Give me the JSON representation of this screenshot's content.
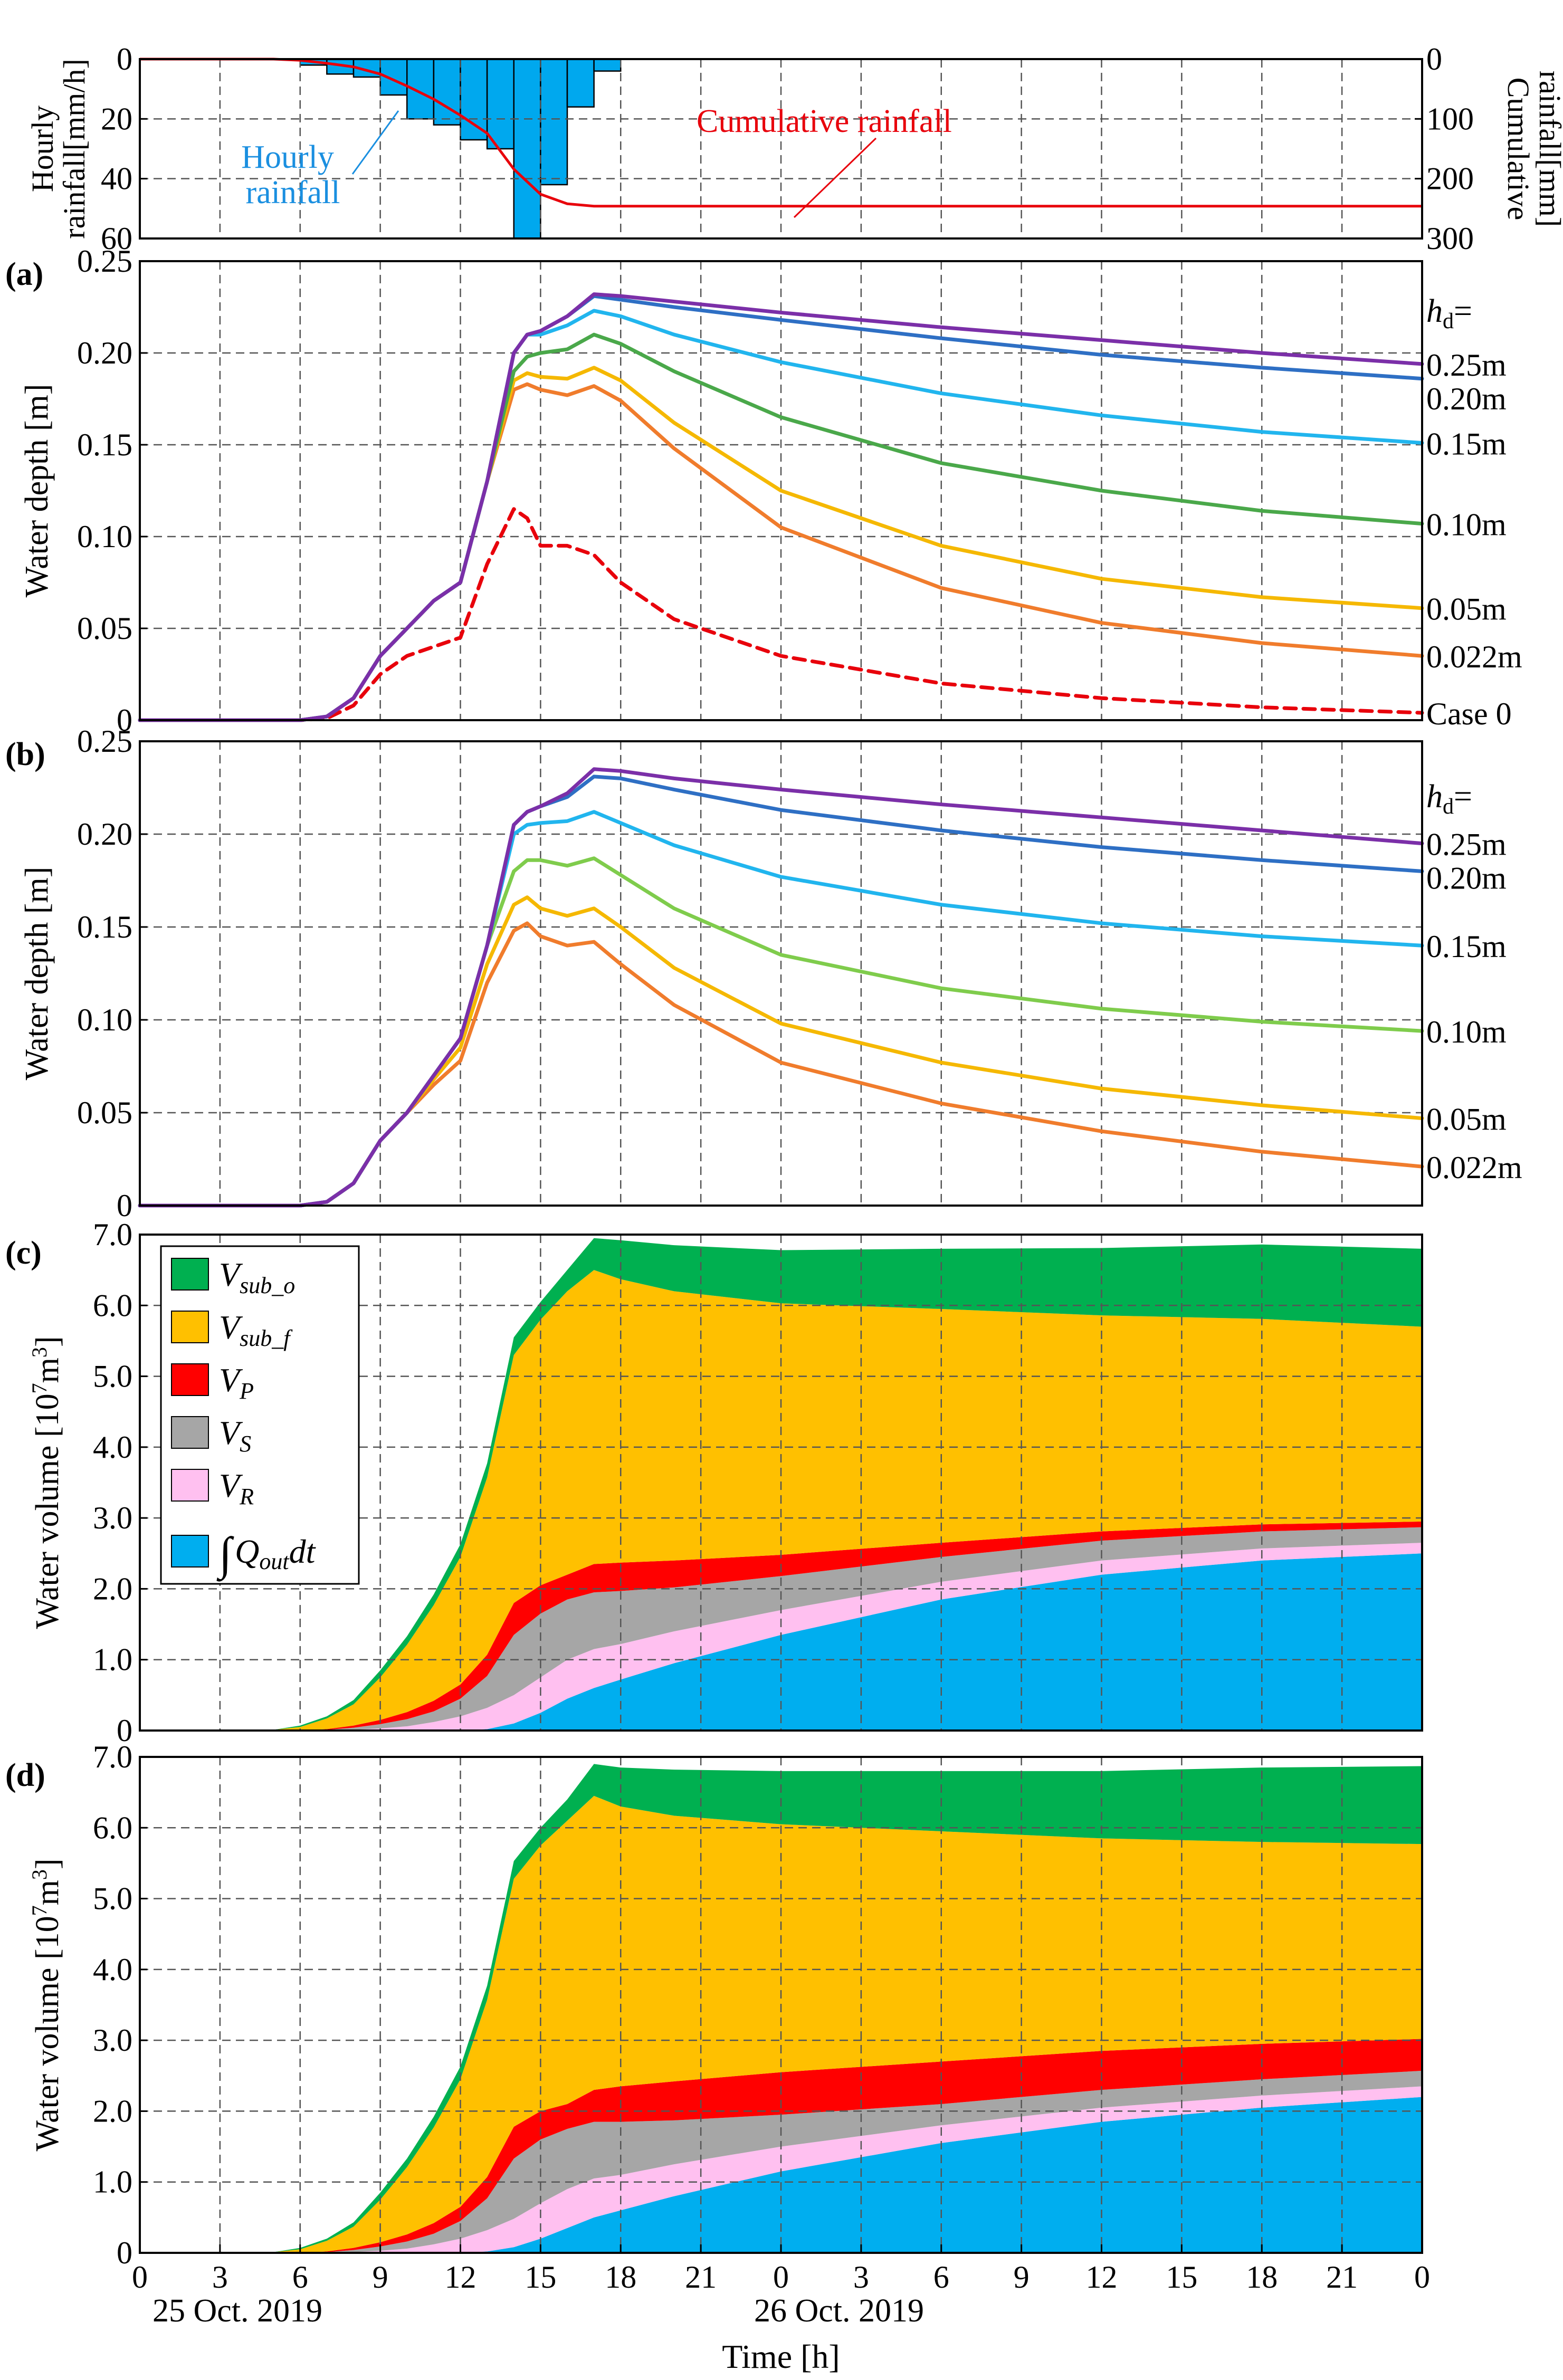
{
  "chart_data": [
    {
      "type": "bar",
      "panel": "rainfall",
      "ylabel": "Hourly rainfall[mm/h]",
      "ylabel_lines": [
        "Hourly",
        "rainfall[mm/h]"
      ],
      "y2label": "Cumulative rainfall[mm]",
      "y2label_lines": [
        "Cumulative",
        "rainfall[mm]"
      ],
      "ylim": [
        0,
        60
      ],
      "ylim_inverted": true,
      "yticks": [
        0,
        20,
        40,
        60
      ],
      "y2lim": [
        0,
        300
      ],
      "y2ticks": [
        0,
        100,
        200,
        300
      ],
      "y2ticklabels": [
        "0",
        "100",
        "200",
        "300"
      ],
      "xlim": [
        0,
        48
      ],
      "grid": true,
      "annotations": [
        {
          "label": "hourly",
          "lines": [
            "Hourly",
            "rainfall"
          ],
          "color": "#1a8fe0"
        },
        {
          "label": "cumulative",
          "lines": [
            "Cumulative rainfall"
          ],
          "color": "#e8000b"
        }
      ],
      "series": [
        {
          "name": "Hourly rainfall",
          "color": "#00a8ee",
          "bar_x": [
            6,
            7,
            8,
            9,
            10,
            11,
            12,
            13,
            14,
            15,
            16,
            17
          ],
          "values": [
            2,
            5,
            6,
            12,
            20,
            22,
            27,
            30,
            60,
            42,
            16,
            4
          ]
        },
        {
          "name": "Cumulative rainfall",
          "color": "#e8000b",
          "x": [
            0,
            5,
            6,
            7,
            8,
            9,
            10,
            11,
            12,
            13,
            14,
            15,
            16,
            17,
            18,
            48
          ],
          "values": [
            0,
            0,
            2,
            7,
            13,
            25,
            45,
            67,
            94,
            124,
            184,
            226,
            242,
            246,
            246,
            246
          ]
        }
      ]
    },
    {
      "type": "line",
      "panel": "(a)",
      "ylabel": "Water depth [m]",
      "ylim": [
        0,
        0.25
      ],
      "yticks": [
        0,
        0.05,
        0.1,
        0.15,
        0.2,
        0.25
      ],
      "yticklabels": [
        "0",
        "0.05",
        "0.10",
        "0.15",
        "0.20",
        "0.25"
      ],
      "xlim": [
        0,
        48
      ],
      "grid": true,
      "legend_title_main": "h",
      "legend_title_sub": "d",
      "legend_title_tail": "=",
      "x": [
        0,
        6,
        7,
        8,
        9,
        10,
        11,
        12,
        13,
        14,
        14.5,
        15,
        16,
        17,
        18,
        20,
        24,
        30,
        36,
        42,
        48
      ],
      "series": [
        {
          "name": "0.25m",
          "color": "#7b2fa8",
          "dashed": false,
          "values": [
            0,
            0,
            0.002,
            0.012,
            0.035,
            0.05,
            0.065,
            0.075,
            0.13,
            0.2,
            0.21,
            0.212,
            0.22,
            0.232,
            0.231,
            0.228,
            0.222,
            0.214,
            0.207,
            0.2,
            0.194
          ]
        },
        {
          "name": "0.20m",
          "color": "#2e6fc4",
          "dashed": false,
          "values": [
            0,
            0,
            0.002,
            0.012,
            0.035,
            0.05,
            0.065,
            0.075,
            0.13,
            0.2,
            0.21,
            0.212,
            0.22,
            0.231,
            0.229,
            0.225,
            0.218,
            0.208,
            0.199,
            0.192,
            0.186
          ]
        },
        {
          "name": "0.15m",
          "color": "#21b5ee",
          "dashed": false,
          "values": [
            0,
            0,
            0.002,
            0.012,
            0.035,
            0.05,
            0.065,
            0.075,
            0.13,
            0.2,
            0.21,
            0.21,
            0.215,
            0.223,
            0.22,
            0.21,
            0.195,
            0.178,
            0.166,
            0.157,
            0.151
          ]
        },
        {
          "name": "0.10m",
          "color": "#4aa84a",
          "dashed": false,
          "values": [
            0,
            0,
            0.002,
            0.012,
            0.035,
            0.05,
            0.065,
            0.075,
            0.13,
            0.19,
            0.198,
            0.2,
            0.202,
            0.21,
            0.205,
            0.19,
            0.165,
            0.14,
            0.125,
            0.114,
            0.107
          ]
        },
        {
          "name": "0.05m",
          "color": "#f5b800",
          "dashed": false,
          "values": [
            0,
            0,
            0.002,
            0.012,
            0.035,
            0.05,
            0.065,
            0.075,
            0.13,
            0.185,
            0.189,
            0.187,
            0.186,
            0.192,
            0.185,
            0.162,
            0.125,
            0.095,
            0.077,
            0.067,
            0.061
          ]
        },
        {
          "name": "0.022m",
          "color": "#f07c2c",
          "dashed": false,
          "values": [
            0,
            0,
            0.002,
            0.012,
            0.035,
            0.05,
            0.065,
            0.075,
            0.13,
            0.18,
            0.183,
            0.18,
            0.177,
            0.182,
            0.174,
            0.148,
            0.105,
            0.072,
            0.053,
            0.042,
            0.035
          ]
        },
        {
          "name": "Case 0",
          "color": "#e8000b",
          "dashed": true,
          "values": [
            0,
            0,
            0.001,
            0.008,
            0.025,
            0.035,
            0.04,
            0.045,
            0.085,
            0.115,
            0.11,
            0.095,
            0.095,
            0.09,
            0.075,
            0.055,
            0.035,
            0.02,
            0.012,
            0.007,
            0.004
          ]
        }
      ]
    },
    {
      "type": "line",
      "panel": "(b)",
      "ylabel": "Water depth [m]",
      "ylim": [
        0,
        0.25
      ],
      "yticks": [
        0,
        0.05,
        0.1,
        0.15,
        0.2,
        0.25
      ],
      "yticklabels": [
        "0",
        "0.05",
        "0.10",
        "0.15",
        "0.20",
        "0.25"
      ],
      "xlim": [
        0,
        48
      ],
      "grid": true,
      "legend_title_main": "h",
      "legend_title_sub": "d",
      "legend_title_tail": "=",
      "x": [
        0,
        6,
        7,
        8,
        9,
        10,
        11,
        12,
        13,
        14,
        14.5,
        15,
        16,
        17,
        18,
        20,
        24,
        30,
        36,
        42,
        48
      ],
      "series": [
        {
          "name": "0.25m",
          "color": "#7b2fa8",
          "dashed": false,
          "values": [
            0,
            0,
            0.002,
            0.012,
            0.035,
            0.05,
            0.07,
            0.09,
            0.14,
            0.205,
            0.212,
            0.215,
            0.222,
            0.235,
            0.234,
            0.23,
            0.224,
            0.216,
            0.209,
            0.202,
            0.195
          ]
        },
        {
          "name": "0.20m",
          "color": "#2e6fc4",
          "dashed": false,
          "values": [
            0,
            0,
            0.002,
            0.012,
            0.035,
            0.05,
            0.07,
            0.09,
            0.14,
            0.205,
            0.212,
            0.215,
            0.22,
            0.231,
            0.23,
            0.224,
            0.213,
            0.202,
            0.193,
            0.186,
            0.18
          ]
        },
        {
          "name": "0.15m",
          "color": "#21b5ee",
          "dashed": false,
          "values": [
            0,
            0,
            0.002,
            0.012,
            0.035,
            0.05,
            0.07,
            0.09,
            0.14,
            0.2,
            0.205,
            0.206,
            0.207,
            0.212,
            0.206,
            0.194,
            0.177,
            0.162,
            0.152,
            0.145,
            0.14
          ]
        },
        {
          "name": "0.10m",
          "color": "#7fcc4c",
          "dashed": false,
          "values": [
            0,
            0,
            0.002,
            0.012,
            0.035,
            0.05,
            0.07,
            0.09,
            0.14,
            0.18,
            0.186,
            0.186,
            0.183,
            0.187,
            0.178,
            0.16,
            0.135,
            0.117,
            0.106,
            0.099,
            0.094
          ]
        },
        {
          "name": "0.05m",
          "color": "#f5b800",
          "dashed": false,
          "values": [
            0,
            0,
            0.002,
            0.012,
            0.035,
            0.05,
            0.068,
            0.085,
            0.13,
            0.162,
            0.166,
            0.16,
            0.156,
            0.16,
            0.15,
            0.128,
            0.098,
            0.077,
            0.063,
            0.054,
            0.047
          ]
        },
        {
          "name": "0.022m",
          "color": "#f07c2c",
          "dashed": false,
          "values": [
            0,
            0,
            0.002,
            0.012,
            0.035,
            0.05,
            0.065,
            0.078,
            0.12,
            0.148,
            0.152,
            0.145,
            0.14,
            0.142,
            0.13,
            0.108,
            0.077,
            0.055,
            0.04,
            0.029,
            0.021
          ]
        }
      ]
    },
    {
      "type": "area",
      "panel": "(c)",
      "ylabel": "Water volume [10⁷m³]",
      "ylabel_main": "Water volume [10",
      "ylabel_sup1": "7",
      "ylabel_mid": "m",
      "ylabel_sup2": "3",
      "ylabel_end": "]",
      "ylim": [
        0,
        7.0
      ],
      "yticks": [
        0,
        1,
        2,
        3,
        4,
        5,
        6,
        7
      ],
      "yticklabels": [
        "0",
        "1.0",
        "2.0",
        "3.0",
        "4.0",
        "5.0",
        "6.0",
        "7.0"
      ],
      "xlim": [
        0,
        48
      ],
      "grid": true,
      "legend_position": "top-left",
      "x": [
        0,
        4,
        5,
        6,
        7,
        8,
        9,
        10,
        11,
        12,
        13,
        14,
        15,
        16,
        17,
        18,
        20,
        24,
        30,
        36,
        42,
        48
      ],
      "series": [
        {
          "name": "∫Qout dt",
          "legend_main": "∫",
          "legend_sub": "Q",
          "legend_sub2": "out",
          "legend_tail": "dt",
          "color": "#00aeef",
          "values": [
            0,
            0,
            0,
            0,
            0,
            0,
            0,
            0,
            0,
            0,
            0.02,
            0.1,
            0.25,
            0.45,
            0.6,
            0.72,
            0.95,
            1.35,
            1.85,
            2.2,
            2.4,
            2.5
          ]
        },
        {
          "name": "V_R",
          "legend_main": "V",
          "legend_sub": "R",
          "color": "#ffc0f0",
          "values": [
            0,
            0,
            0,
            0,
            0,
            0.01,
            0.03,
            0.06,
            0.12,
            0.2,
            0.3,
            0.4,
            0.5,
            0.55,
            0.55,
            0.5,
            0.45,
            0.35,
            0.25,
            0.2,
            0.17,
            0.15
          ]
        },
        {
          "name": "V_S",
          "legend_main": "V",
          "legend_sub": "S",
          "color": "#a6a6a6",
          "values": [
            0,
            0,
            0,
            0,
            0.01,
            0.03,
            0.06,
            0.1,
            0.15,
            0.25,
            0.45,
            0.85,
            0.9,
            0.85,
            0.8,
            0.75,
            0.62,
            0.48,
            0.35,
            0.28,
            0.24,
            0.22
          ]
        },
        {
          "name": "V_P",
          "legend_main": "V",
          "legend_sub": "P",
          "color": "#ff0000",
          "values": [
            0,
            0,
            0,
            0,
            0.01,
            0.03,
            0.06,
            0.1,
            0.15,
            0.2,
            0.3,
            0.45,
            0.4,
            0.35,
            0.4,
            0.4,
            0.38,
            0.3,
            0.2,
            0.13,
            0.1,
            0.08
          ]
        },
        {
          "name": "V_sub_f",
          "legend_main": "V",
          "legend_sub": "sub_f",
          "color": "#ffc000",
          "values": [
            0,
            0,
            0.01,
            0.05,
            0.15,
            0.3,
            0.6,
            0.95,
            1.35,
            1.8,
            2.5,
            3.5,
            3.75,
            4.0,
            4.15,
            4.0,
            3.8,
            3.55,
            3.3,
            3.05,
            2.9,
            2.75
          ]
        },
        {
          "name": "V_sub_o",
          "legend_main": "V",
          "legend_sub": "sub_o",
          "color": "#00b050",
          "values": [
            0,
            0,
            0,
            0.02,
            0.03,
            0.06,
            0.1,
            0.12,
            0.15,
            0.18,
            0.2,
            0.25,
            0.25,
            0.3,
            0.45,
            0.55,
            0.65,
            0.75,
            0.85,
            0.95,
            1.05,
            1.1
          ]
        }
      ]
    },
    {
      "type": "area",
      "panel": "(d)",
      "ylabel": "Water volume [10⁷m³]",
      "ylabel_main": "Water volume [10",
      "ylabel_sup1": "7",
      "ylabel_mid": "m",
      "ylabel_sup2": "3",
      "ylabel_end": "]",
      "ylim": [
        0,
        7.0
      ],
      "yticks": [
        0,
        1,
        2,
        3,
        4,
        5,
        6,
        7
      ],
      "yticklabels": [
        "0",
        "1.0",
        "2.0",
        "3.0",
        "4.0",
        "5.0",
        "6.0",
        "7.0"
      ],
      "xlim": [
        0,
        48
      ],
      "grid": true,
      "x": [
        0,
        4,
        5,
        6,
        7,
        8,
        9,
        10,
        11,
        12,
        13,
        14,
        15,
        16,
        17,
        18,
        20,
        24,
        30,
        36,
        42,
        48
      ],
      "series": [
        {
          "name": "∫Qout dt",
          "color": "#00aeef",
          "values": [
            0,
            0,
            0,
            0,
            0,
            0,
            0,
            0,
            0,
            0,
            0.02,
            0.08,
            0.2,
            0.35,
            0.5,
            0.6,
            0.8,
            1.15,
            1.55,
            1.85,
            2.05,
            2.2
          ]
        },
        {
          "name": "V_R",
          "color": "#ffc0f0",
          "values": [
            0,
            0,
            0,
            0,
            0,
            0.01,
            0.03,
            0.06,
            0.12,
            0.2,
            0.3,
            0.4,
            0.5,
            0.55,
            0.55,
            0.5,
            0.45,
            0.35,
            0.25,
            0.2,
            0.17,
            0.15
          ]
        },
        {
          "name": "V_S",
          "color": "#a6a6a6",
          "values": [
            0,
            0,
            0,
            0,
            0.01,
            0.03,
            0.06,
            0.1,
            0.15,
            0.25,
            0.45,
            0.85,
            0.9,
            0.85,
            0.8,
            0.75,
            0.62,
            0.45,
            0.3,
            0.25,
            0.23,
            0.22
          ]
        },
        {
          "name": "V_P",
          "color": "#ff0000",
          "values": [
            0,
            0,
            0,
            0,
            0.01,
            0.03,
            0.06,
            0.1,
            0.15,
            0.2,
            0.3,
            0.45,
            0.4,
            0.35,
            0.45,
            0.5,
            0.55,
            0.6,
            0.6,
            0.55,
            0.5,
            0.45
          ]
        },
        {
          "name": "V_sub_f",
          "color": "#ffc000",
          "values": [
            0,
            0,
            0.01,
            0.05,
            0.15,
            0.3,
            0.6,
            0.95,
            1.35,
            1.8,
            2.5,
            3.5,
            3.75,
            4.0,
            4.15,
            3.95,
            3.75,
            3.5,
            3.25,
            3.0,
            2.85,
            2.75
          ]
        },
        {
          "name": "V_sub_o",
          "color": "#00b050",
          "values": [
            0,
            0,
            0,
            0.02,
            0.03,
            0.06,
            0.1,
            0.12,
            0.15,
            0.18,
            0.2,
            0.25,
            0.25,
            0.3,
            0.45,
            0.55,
            0.65,
            0.75,
            0.85,
            0.95,
            1.05,
            1.1
          ]
        }
      ]
    }
  ],
  "x_axis": {
    "xlabel": "Time [h]",
    "ticks": [
      0,
      3,
      6,
      9,
      12,
      15,
      18,
      21,
      24,
      27,
      30,
      33,
      36,
      39,
      42,
      45,
      48
    ],
    "ticklabels": [
      "0",
      "3",
      "6",
      "9",
      "12",
      "15",
      "18",
      "21",
      "0",
      "3",
      "6",
      "9",
      "12",
      "15",
      "18",
      "21",
      "0"
    ],
    "date_labels": [
      "25 Oct. 2019",
      "26 Oct. 2019"
    ],
    "date_positions": [
      2.5,
      26.5
    ]
  },
  "colors": {
    "grid": "#555555",
    "axis": "#000000",
    "hourly_annotation": "#1a8fe0",
    "cumulative_annotation": "#e8000b"
  }
}
